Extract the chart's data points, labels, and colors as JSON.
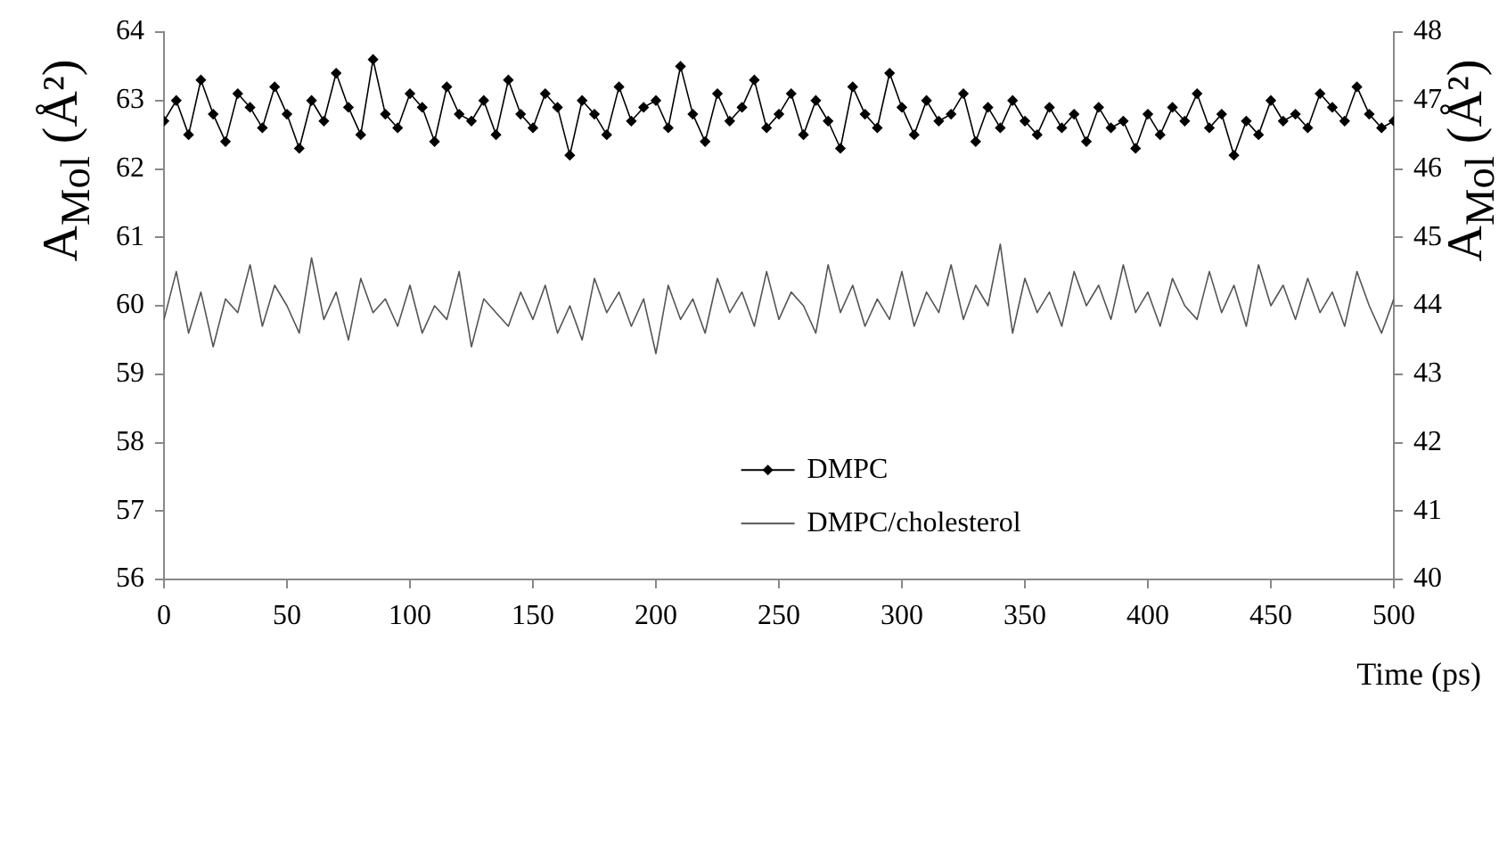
{
  "chart_data": {
    "type": "line",
    "xlabel": "Time (ps)",
    "ylabel": "A$_{Mol}$ (Å²)",
    "y2label": "A$_{Mol}$ (Å²)",
    "x": [
      0,
      5,
      10,
      15,
      20,
      25,
      30,
      35,
      40,
      45,
      50,
      55,
      60,
      65,
      70,
      75,
      80,
      85,
      90,
      95,
      100,
      105,
      110,
      115,
      120,
      125,
      130,
      135,
      140,
      145,
      150,
      155,
      160,
      165,
      170,
      175,
      180,
      185,
      190,
      195,
      200,
      205,
      210,
      215,
      220,
      225,
      230,
      235,
      240,
      245,
      250,
      255,
      260,
      265,
      270,
      275,
      280,
      285,
      290,
      295,
      300,
      305,
      310,
      315,
      320,
      325,
      330,
      335,
      340,
      345,
      350,
      355,
      360,
      365,
      370,
      375,
      380,
      385,
      390,
      395,
      400,
      405,
      410,
      415,
      420,
      425,
      430,
      435,
      440,
      445,
      450,
      455,
      460,
      465,
      470,
      475,
      480,
      485,
      490,
      495,
      500
    ],
    "series": [
      {
        "name": "DMPC",
        "color": "#000000",
        "marker": "diamond",
        "values": [
          62.7,
          63.0,
          62.5,
          63.3,
          62.8,
          62.4,
          63.1,
          62.9,
          62.6,
          63.2,
          62.8,
          62.3,
          63.0,
          62.7,
          63.4,
          62.9,
          62.5,
          63.6,
          62.8,
          62.6,
          63.1,
          62.9,
          62.4,
          63.2,
          62.8,
          62.7,
          63.0,
          62.5,
          63.3,
          62.8,
          62.6,
          63.1,
          62.9,
          62.2,
          63.0,
          62.8,
          62.5,
          63.2,
          62.7,
          62.9,
          63.0,
          62.6,
          63.5,
          62.8,
          62.4,
          63.1,
          62.7,
          62.9,
          63.3,
          62.6,
          62.8,
          63.1,
          62.5,
          63.0,
          62.7,
          62.3,
          63.2,
          62.8,
          62.6,
          63.4,
          62.9,
          62.5,
          63.0,
          62.7,
          62.8,
          63.1,
          62.4,
          62.9,
          62.6,
          63.0,
          62.7,
          62.5,
          62.9,
          62.6,
          62.8,
          62.4,
          62.9,
          62.6,
          62.7,
          62.3,
          62.8,
          62.5,
          62.9,
          62.7,
          63.1,
          62.6,
          62.8,
          62.2,
          62.7,
          62.5,
          63.0,
          62.7,
          62.8,
          62.6,
          63.1,
          62.9,
          62.7,
          63.2,
          62.8,
          62.6,
          62.7
        ]
      },
      {
        "name": "DMPC/cholesterol",
        "color": "#555555",
        "marker": "none",
        "axis": "y2",
        "values": [
          43.8,
          44.5,
          43.6,
          44.2,
          43.4,
          44.1,
          43.9,
          44.6,
          43.7,
          44.3,
          44.0,
          43.6,
          44.7,
          43.8,
          44.2,
          43.5,
          44.4,
          43.9,
          44.1,
          43.7,
          44.3,
          43.6,
          44.0,
          43.8,
          44.5,
          43.4,
          44.1,
          43.9,
          43.7,
          44.2,
          43.8,
          44.3,
          43.6,
          44.0,
          43.5,
          44.4,
          43.9,
          44.2,
          43.7,
          44.1,
          43.3,
          44.3,
          43.8,
          44.1,
          43.6,
          44.4,
          43.9,
          44.2,
          43.7,
          44.5,
          43.8,
          44.2,
          44.0,
          43.6,
          44.6,
          43.9,
          44.3,
          43.7,
          44.1,
          43.8,
          44.5,
          43.7,
          44.2,
          43.9,
          44.6,
          43.8,
          44.3,
          44.0,
          44.9,
          43.6,
          44.4,
          43.9,
          44.2,
          43.7,
          44.5,
          44.0,
          44.3,
          43.8,
          44.6,
          43.9,
          44.2,
          43.7,
          44.4,
          44.0,
          43.8,
          44.5,
          43.9,
          44.3,
          43.7,
          44.6,
          44.0,
          44.3,
          43.8,
          44.4,
          43.9,
          44.2,
          43.7,
          44.5,
          44.0,
          43.6,
          44.1
        ]
      }
    ],
    "xlim": [
      0,
      500
    ],
    "xticks": [
      0,
      50,
      100,
      150,
      200,
      250,
      300,
      350,
      400,
      450,
      500
    ],
    "ylim": [
      56,
      64
    ],
    "yticks": [
      56,
      57,
      58,
      59,
      60,
      61,
      62,
      63,
      64
    ],
    "y2lim": [
      40,
      48
    ],
    "y2ticks": [
      40,
      41,
      42,
      43,
      44,
      45,
      46,
      47,
      48
    ],
    "grid": false,
    "legend": "bottom"
  }
}
